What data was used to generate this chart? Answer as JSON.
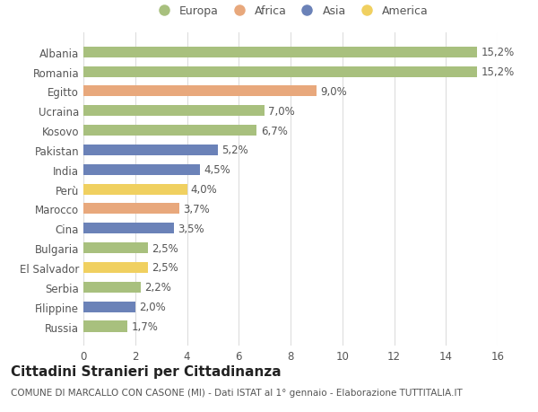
{
  "countries": [
    "Albania",
    "Romania",
    "Egitto",
    "Ucraina",
    "Kosovo",
    "Pakistan",
    "India",
    "Perù",
    "Marocco",
    "Cina",
    "Bulgaria",
    "El Salvador",
    "Serbia",
    "Filippine",
    "Russia"
  ],
  "values": [
    15.2,
    15.2,
    9.0,
    7.0,
    6.7,
    5.2,
    4.5,
    4.0,
    3.7,
    3.5,
    2.5,
    2.5,
    2.2,
    2.0,
    1.7
  ],
  "labels": [
    "15,2%",
    "15,2%",
    "9,0%",
    "7,0%",
    "6,7%",
    "5,2%",
    "4,5%",
    "4,0%",
    "3,7%",
    "3,5%",
    "2,5%",
    "2,5%",
    "2,2%",
    "2,0%",
    "1,7%"
  ],
  "categories": [
    "Europa",
    "Europa",
    "Africa",
    "Europa",
    "Europa",
    "Asia",
    "Asia",
    "America",
    "Africa",
    "Asia",
    "Europa",
    "America",
    "Europa",
    "Asia",
    "Europa"
  ],
  "colors": {
    "Europa": "#a8c07e",
    "Africa": "#e8a87c",
    "Asia": "#6b82b8",
    "America": "#f0d060"
  },
  "title": "Cittadini Stranieri per Cittadinanza",
  "subtitle": "COMUNE DI MARCALLO CON CASONE (MI) - Dati ISTAT al 1° gennaio - Elaborazione TUTTITALIA.IT",
  "xlim": [
    0,
    16
  ],
  "xticks": [
    0,
    2,
    4,
    6,
    8,
    10,
    12,
    14,
    16
  ],
  "background_color": "#ffffff",
  "chart_bg_color": "#f9f9f9",
  "grid_color": "#dddddd",
  "bar_height": 0.55,
  "label_fontsize": 8.5,
  "tick_fontsize": 8.5,
  "title_fontsize": 11,
  "subtitle_fontsize": 7.5,
  "legend_order": [
    "Europa",
    "Africa",
    "Asia",
    "America"
  ]
}
